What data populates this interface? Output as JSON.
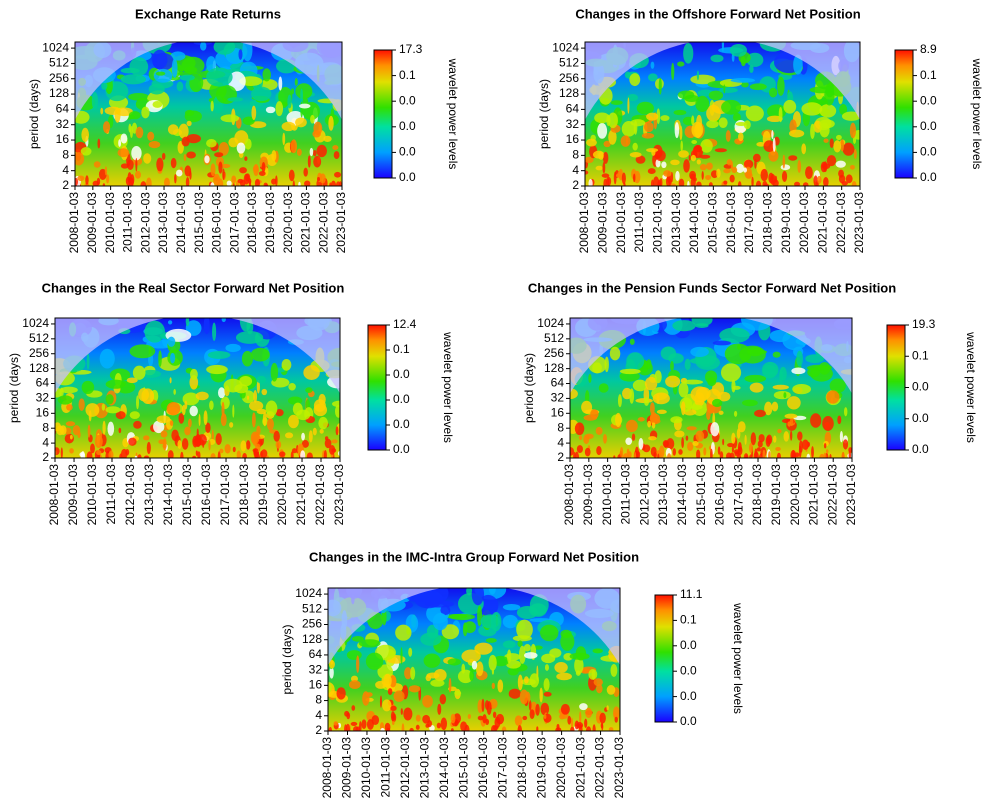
{
  "chart_data": [
    {
      "type": "heatmap",
      "title": "Exchange Rate Returns",
      "ylabel": "period (days)",
      "colorbar_label": "wavelet power levels",
      "log_base": 2,
      "ylim": [
        2,
        1350
      ],
      "yticks": [
        2,
        4,
        8,
        16,
        32,
        64,
        128,
        256,
        512,
        1024
      ],
      "xlim": [
        "2008-01-03",
        "2023-01-03"
      ],
      "xticks": [
        "2008-01-03",
        "2009-01-03",
        "2010-01-03",
        "2011-01-03",
        "2012-01-03",
        "2013-01-03",
        "2014-01-03",
        "2015-01-03",
        "2016-01-03",
        "2017-01-03",
        "2018-01-03",
        "2019-01-03",
        "2020-01-03",
        "2021-01-03",
        "2022-01-03",
        "2023-01-03"
      ],
      "colorbar_ticks": [
        17.3,
        0.1,
        {
          "value": 0,
          "label": "0.0"
        },
        {
          "value": 0,
          "label": "0.0"
        },
        {
          "value": 0,
          "label": "0.0"
        },
        {
          "value": 0,
          "label": "0.0"
        }
      ]
    },
    {
      "type": "heatmap",
      "title": "Changes in the Offshore Forward Net Position",
      "ylabel": "period (days)",
      "colorbar_label": "wavelet power levels",
      "log_base": 2,
      "ylim": [
        2,
        1350
      ],
      "yticks": [
        2,
        4,
        8,
        16,
        32,
        64,
        128,
        256,
        512,
        1024
      ],
      "xlim": [
        "2008-01-03",
        "2023-01-03"
      ],
      "xticks": [
        "2008-01-03",
        "2009-01-03",
        "2010-01-03",
        "2011-01-03",
        "2012-01-03",
        "2013-01-03",
        "2014-01-03",
        "2015-01-03",
        "2016-01-03",
        "2017-01-03",
        "2018-01-03",
        "2019-01-03",
        "2020-01-03",
        "2021-01-03",
        "2022-01-03",
        "2023-01-03"
      ],
      "colorbar_ticks": [
        8.9,
        0.1,
        {
          "value": 0,
          "label": "0.0"
        },
        {
          "value": 0,
          "label": "0.0"
        },
        {
          "value": 0,
          "label": "0.0"
        },
        {
          "value": 0,
          "label": "0.0"
        }
      ]
    },
    {
      "type": "heatmap",
      "title": "Changes in the Real Sector Forward Net Position",
      "ylabel": "period (days)",
      "colorbar_label": "wavelet power levels",
      "log_base": 2,
      "ylim": [
        2,
        1350
      ],
      "yticks": [
        2,
        4,
        8,
        16,
        32,
        64,
        128,
        256,
        512,
        1024
      ],
      "xlim": [
        "2008-01-03",
        "2023-01-03"
      ],
      "xticks": [
        "2008-01-03",
        "2009-01-03",
        "2010-01-03",
        "2011-01-03",
        "2012-01-03",
        "2013-01-03",
        "2014-01-03",
        "2015-01-03",
        "2016-01-03",
        "2017-01-03",
        "2018-01-03",
        "2019-01-03",
        "2020-01-03",
        "2021-01-03",
        "2022-01-03",
        "2023-01-03"
      ],
      "colorbar_ticks": [
        12.4,
        0.1,
        {
          "value": 0,
          "label": "0.0"
        },
        {
          "value": 0,
          "label": "0.0"
        },
        {
          "value": 0,
          "label": "0.0"
        },
        {
          "value": 0,
          "label": "0.0"
        }
      ]
    },
    {
      "type": "heatmap",
      "title": "Changes in the Pension Funds Sector Forward Net Position",
      "ylabel": "period (days)",
      "colorbar_label": "wavelet power levels",
      "log_base": 2,
      "ylim": [
        2,
        1350
      ],
      "yticks": [
        2,
        4,
        8,
        16,
        32,
        64,
        128,
        256,
        512,
        1024
      ],
      "xlim": [
        "2008-01-03",
        "2023-01-03"
      ],
      "xticks": [
        "2008-01-03",
        "2009-01-03",
        "2010-01-03",
        "2011-01-03",
        "2012-01-03",
        "2013-01-03",
        "2014-01-03",
        "2015-01-03",
        "2016-01-03",
        "2017-01-03",
        "2018-01-03",
        "2019-01-03",
        "2020-01-03",
        "2021-01-03",
        "2022-01-03",
        "2023-01-03"
      ],
      "colorbar_ticks": [
        19.3,
        0.1,
        {
          "value": 0,
          "label": "0.0"
        },
        {
          "value": 0,
          "label": "0.0"
        },
        {
          "value": 0,
          "label": "0.0"
        }
      ]
    },
    {
      "type": "heatmap",
      "title": "Changes in the IMC-Intra Group Forward Net Position",
      "ylabel": "period (days)",
      "colorbar_label": "wavelet power levels",
      "log_base": 2,
      "ylim": [
        2,
        1350
      ],
      "yticks": [
        2,
        4,
        8,
        16,
        32,
        64,
        128,
        256,
        512,
        1024
      ],
      "xlim": [
        "2008-01-03",
        "2023-01-03"
      ],
      "xticks": [
        "2008-01-03",
        "2009-01-03",
        "2010-01-03",
        "2011-01-03",
        "2012-01-03",
        "2013-01-03",
        "2014-01-03",
        "2015-01-03",
        "2016-01-03",
        "2017-01-03",
        "2018-01-03",
        "2019-01-03",
        "2020-01-03",
        "2021-01-03",
        "2022-01-03",
        "2023-01-03"
      ],
      "colorbar_ticks": [
        11.1,
        0.1,
        {
          "value": 0,
          "label": "0.0"
        },
        {
          "value": 0,
          "label": "0.0"
        },
        {
          "value": 0,
          "label": "0.0"
        },
        {
          "value": 0,
          "label": "0.0"
        }
      ]
    }
  ]
}
